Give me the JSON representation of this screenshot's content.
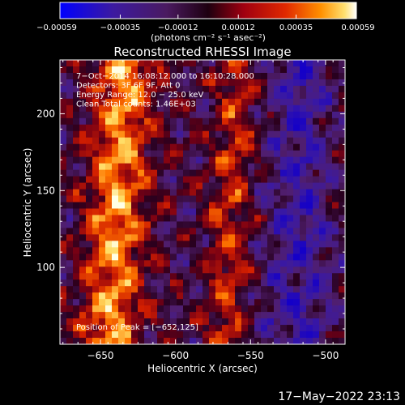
{
  "chart_data": {
    "type": "heatmap",
    "title": "Reconstructed RHESSI Image",
    "xlabel": "Heliocentric X (arcsec)",
    "ylabel": "Heliocentric Y (arcsec)",
    "xlim": [
      -677,
      -487
    ],
    "ylim": [
      50,
      235
    ],
    "xticks": [
      -650,
      -600,
      -550,
      -500
    ],
    "xtick_labels": [
      "−650",
      "−600",
      "−550",
      "−500"
    ],
    "yticks": [
      100,
      150,
      200
    ],
    "ytick_labels": [
      "100",
      "150",
      "200"
    ],
    "colorbar": {
      "min": -0.00059,
      "max": 0.00059,
      "ticks": [
        -0.00059,
        -0.00035,
        -0.00012,
        0.00012,
        0.00035,
        0.00059
      ],
      "tick_labels": [
        "−0.00059",
        "−0.00035",
        "−0.00012",
        "0.00012",
        "0.00035",
        "0.00059"
      ],
      "unit_label": "(photons cm⁻² s⁻¹ asec⁻²)"
    },
    "annotations": [
      "7−Oct−2014 16:08:12.000 to 16:10:28.000",
      "Detectors: 3F 6F 9F, Att 0",
      "Energy Range: 12.0 − 25.0 keV",
      "Clean    Total counts: 1.46E+03"
    ],
    "peak_label": "Position of Peak = [−652,125]",
    "peak": [
      -652,
      125
    ],
    "grid": false
  },
  "footer": {
    "timestamp": "17−May−2022 23:13"
  },
  "colors": {
    "background": "#000000",
    "foreground": "#ffffff"
  }
}
